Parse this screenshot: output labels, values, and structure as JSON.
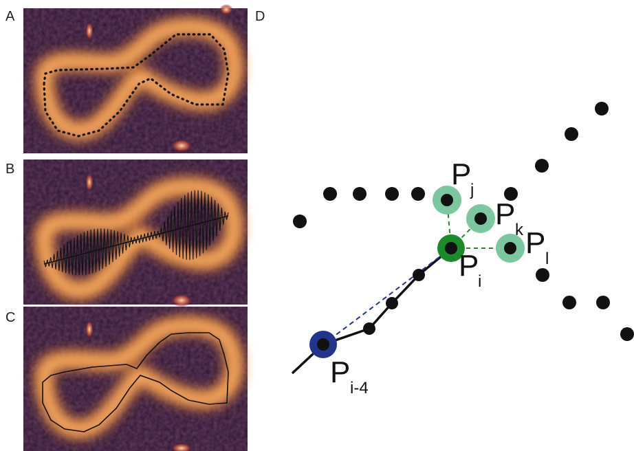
{
  "panels": {
    "a": "A",
    "b": "B",
    "c": "C",
    "d": "D"
  },
  "points": {
    "pj": {
      "symbol": "P",
      "sub": "j"
    },
    "pk": {
      "symbol": "P",
      "sub": "k"
    },
    "pl": {
      "symbol": "P",
      "sub": "l"
    },
    "pi": {
      "symbol": "P",
      "sub": "i"
    },
    "pi4": {
      "symbol": "P",
      "sub": "i-4"
    }
  },
  "colors": {
    "background_dark": "#2d1430",
    "glow_orange": "#e8822c",
    "glow_core": "#ffd9a0",
    "point_black": "#111111",
    "point_current": "#1a8a2a",
    "point_candidate": "#7cc7a0",
    "point_previous": "#22348c",
    "dashed_green": "#1a8a2a",
    "dashed_blue": "#22348c"
  }
}
